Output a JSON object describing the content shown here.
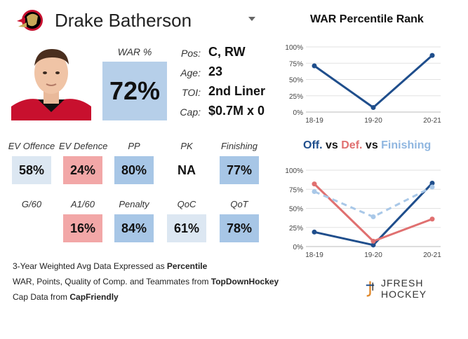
{
  "player": {
    "name": "Drake Batherson",
    "position": "C, RW",
    "age": "23",
    "toi": "2nd Liner",
    "cap": "$0.7M x 0"
  },
  "labels": {
    "war": "WAR %",
    "pos": "Pos:",
    "age": "Age:",
    "toi": "TOI:",
    "cap": "Cap:"
  },
  "war_percent": "72%",
  "colors": {
    "dark_blue": "#1f4e8c",
    "red": "#e07070",
    "light_blue": "#a9c8e8",
    "box_high": "#a7c6e6",
    "box_mid": "#dce7f2",
    "box_low": "#f2a7a7"
  },
  "stats": [
    {
      "label": "EV Offence",
      "value": "58%",
      "tone": "mid"
    },
    {
      "label": "EV Defence",
      "value": "24%",
      "tone": "low"
    },
    {
      "label": "PP",
      "value": "80%",
      "tone": "high"
    },
    {
      "label": "PK",
      "value": "NA",
      "tone": "none"
    },
    {
      "label": "Finishing",
      "value": "77%",
      "tone": "high"
    },
    {
      "label": "G/60",
      "value": "",
      "tone": "none"
    },
    {
      "label": "A1/60",
      "value": "16%",
      "tone": "low"
    },
    {
      "label": "Penalty",
      "value": "84%",
      "tone": "high"
    },
    {
      "label": "QoC",
      "value": "61%",
      "tone": "mid"
    },
    {
      "label": "QoT",
      "value": "78%",
      "tone": "high"
    }
  ],
  "notes": {
    "line1_pre": "3-Year Weighted Avg Data Expressed as ",
    "line1_bold": "Percentile",
    "line2_pre": "WAR, Points, Quality of Comp. and Teammates from ",
    "line2_bold": "TopDownHockey",
    "line3_pre": "Cap Data from ",
    "line3_bold": "CapFriendly"
  },
  "brand": "JFRESH HOCKEY",
  "chart_data": [
    {
      "type": "line",
      "title": "WAR Percentile Rank",
      "categories": [
        "18-19",
        "19-20",
        "20-21"
      ],
      "yticks": [
        "0%",
        "25%",
        "50%",
        "75%",
        "100%"
      ],
      "ylim": [
        0,
        100
      ],
      "grid": true,
      "series": [
        {
          "values": [
            71,
            7,
            87
          ],
          "color": "#1f4e8c",
          "dashed": false
        }
      ]
    },
    {
      "type": "line",
      "title_parts": [
        {
          "text": "Off.",
          "color": "#1f4e8c"
        },
        {
          "text": " vs ",
          "color": "#111111"
        },
        {
          "text": "Def.",
          "color": "#e07070"
        },
        {
          "text": " vs ",
          "color": "#111111"
        },
        {
          "text": "Finishing",
          "color": "#8fb6e0"
        }
      ],
      "categories": [
        "18-19",
        "19-20",
        "20-21"
      ],
      "yticks": [
        "0%",
        "25%",
        "50%",
        "75%",
        "100%"
      ],
      "ylim": [
        0,
        100
      ],
      "grid": true,
      "series": [
        {
          "values": [
            19,
            2,
            83
          ],
          "color": "#1f4e8c",
          "dashed": false
        },
        {
          "values": [
            82,
            7,
            36
          ],
          "color": "#e07070",
          "dashed": false
        },
        {
          "values": [
            72,
            39,
            78
          ],
          "color": "#a9c8e8",
          "dashed": true
        }
      ]
    }
  ]
}
